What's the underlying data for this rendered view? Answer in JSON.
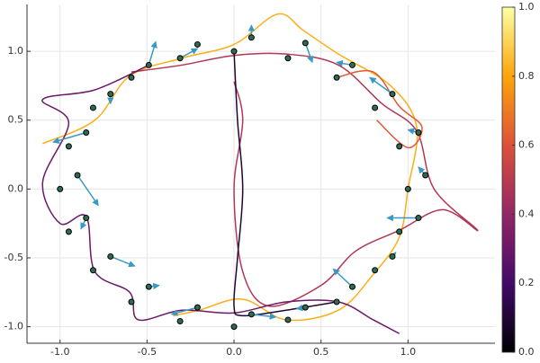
{
  "chart_data": {
    "type": "trajectories",
    "xlim": [
      -1.19,
      1.5
    ],
    "ylim": [
      -1.12,
      1.34
    ],
    "xticks": [
      {
        "value": -1,
        "label": "-1.0"
      },
      -0.5,
      {
        "value": 0,
        "label": "0.0"
      },
      0.5,
      {
        "value": 1,
        "label": "1.0"
      }
    ],
    "yticks": [
      {
        "value": -1,
        "label": "-1.0"
      },
      -0.5,
      {
        "value": 0,
        "label": "0.0"
      },
      0.5,
      {
        "value": 1,
        "label": "1.0"
      }
    ],
    "grid": true,
    "colormap": [
      "#000004",
      "#420a68",
      "#932667",
      "#dd513a",
      "#fca50a",
      "#fcffa4"
    ],
    "clim": [
      0,
      1
    ],
    "cticks": [
      {
        "value": 0,
        "label": "0.0"
      },
      0.2,
      0.4,
      0.6,
      0.8,
      {
        "value": 1,
        "label": "1.0"
      }
    ],
    "curves": [
      {
        "z": 0.82,
        "x": [
          -1.1,
          -0.8,
          -0.6,
          -0.3,
          0.0,
          0.25,
          0.4,
          0.6,
          0.9,
          1.05,
          1.0,
          0.95,
          0.8,
          0.6,
          0.3,
          0.05,
          -0.2,
          -0.35
        ],
        "y": [
          0.33,
          0.5,
          0.82,
          0.95,
          1.05,
          1.27,
          1.15,
          0.98,
          0.75,
          0.45,
          0.0,
          -0.35,
          -0.62,
          -0.88,
          -0.95,
          -0.8,
          -0.88,
          -0.92
        ]
      },
      {
        "z": 0.48,
        "x": [
          -0.59,
          -0.3,
          0.0,
          0.3,
          0.6,
          0.85,
          1.05,
          1.15,
          1.4,
          1.2,
          0.95,
          0.7,
          0.5,
          0.2,
          0.05,
          0.0,
          0.05,
          0.0
        ],
        "y": [
          0.85,
          0.9,
          0.97,
          0.98,
          0.9,
          0.62,
          0.42,
          0.0,
          -0.3,
          -0.15,
          -0.3,
          -0.45,
          -0.7,
          -0.85,
          -0.6,
          0.0,
          0.5,
          0.78
        ]
      },
      {
        "z": 0.3,
        "x": [
          -0.49,
          -0.8,
          -1.1,
          -0.95,
          -1.1,
          -1.0,
          -0.85,
          -0.8,
          -0.6,
          -0.55,
          -0.3,
          0.0,
          0.3,
          0.6,
          0.8,
          0.95
        ],
        "y": [
          0.9,
          0.72,
          0.65,
          0.48,
          0.05,
          -0.25,
          -0.2,
          -0.6,
          -0.75,
          -0.95,
          -0.88,
          -0.9,
          -0.82,
          -0.82,
          -0.95,
          -1.05
        ]
      },
      {
        "z": 0.1,
        "x": [
          0.0,
          0.02,
          0.05,
          0.02,
          0.0,
          0.05,
          0.3,
          0.59
        ],
        "y": [
          1.0,
          0.5,
          0.0,
          -0.5,
          -0.85,
          -0.92,
          -0.88,
          -0.82
        ]
      },
      {
        "z": 0.62,
        "x": [
          0.59,
          0.8,
          0.95,
          1.08,
          1.0,
          0.82
        ],
        "y": [
          0.81,
          0.85,
          0.6,
          0.45,
          0.3,
          0.5
        ]
      }
    ],
    "points": {
      "color": "#2f6b52",
      "x": [
        0.0,
        0.1,
        0.31,
        0.41,
        0.68,
        0.59,
        0.91,
        0.81,
        0.95,
        1.06,
        1.1,
        1.0,
        1.06,
        0.95,
        0.91,
        0.81,
        0.68,
        0.59,
        0.41,
        0.31,
        0.1,
        0.0,
        -0.21,
        -0.31,
        -0.49,
        -0.59,
        -0.71,
        -0.81,
        -0.85,
        -0.95,
        -0.9,
        -1.0,
        -0.85,
        -0.95,
        -0.71,
        -0.81,
        -0.49,
        -0.59,
        -0.21,
        -0.31
      ],
      "y": [
        1.0,
        1.1,
        0.95,
        1.06,
        0.9,
        0.81,
        0.69,
        0.59,
        0.31,
        0.41,
        0.1,
        0.0,
        -0.21,
        -0.31,
        -0.49,
        -0.59,
        -0.71,
        -0.82,
        -0.86,
        -0.95,
        -0.91,
        -1.0,
        -0.86,
        -0.96,
        -0.71,
        -0.82,
        -0.49,
        -0.59,
        -0.21,
        -0.31,
        0.1,
        0.0,
        0.41,
        0.31,
        0.69,
        0.59,
        0.9,
        0.81,
        1.05,
        0.95
      ]
    },
    "quiver": {
      "color": "#3a98c4",
      "x": [
        0.1,
        0.41,
        0.68,
        0.91,
        1.06,
        1.1,
        1.06,
        0.91,
        0.68,
        0.41,
        0.1,
        -0.21,
        -0.49,
        -0.71,
        -0.85,
        -0.9,
        -0.85,
        -0.71,
        -0.49,
        -0.31
      ],
      "y": [
        1.1,
        1.06,
        0.9,
        0.69,
        0.41,
        0.1,
        -0.21,
        -0.49,
        -0.71,
        -0.86,
        -0.91,
        -0.86,
        -0.71,
        -0.49,
        -0.21,
        0.1,
        0.41,
        0.69,
        0.9,
        0.95
      ],
      "u": [
        0.0,
        0.04,
        -0.09,
        -0.13,
        -0.06,
        -0.04,
        -0.18,
        0.02,
        -0.11,
        -0.05,
        0.14,
        -0.15,
        0.06,
        0.14,
        -0.03,
        0.12,
        -0.19,
        0.0,
        0.04,
        0.1
      ],
      "v": [
        0.09,
        -0.14,
        0.02,
        0.12,
        0.02,
        0.06,
        0.0,
        0.03,
        0.13,
        -0.01,
        -0.02,
        -0.05,
        0.01,
        -0.07,
        -0.08,
        -0.22,
        -0.07,
        -0.07,
        0.17,
        0.07
      ]
    }
  }
}
